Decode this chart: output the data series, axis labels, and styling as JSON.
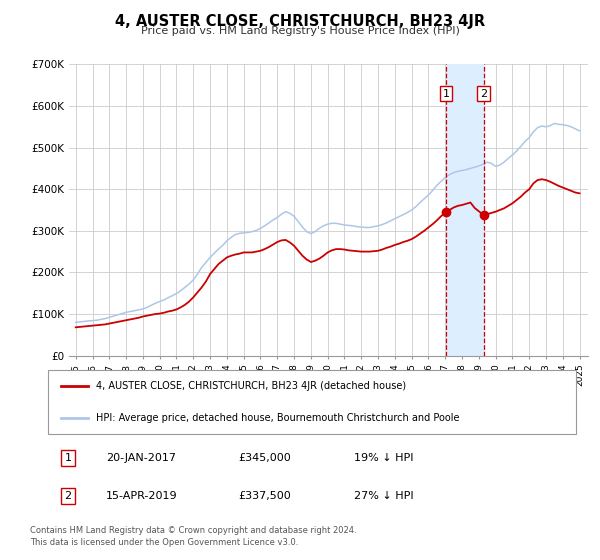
{
  "title": "4, AUSTER CLOSE, CHRISTCHURCH, BH23 4JR",
  "subtitle": "Price paid vs. HM Land Registry's House Price Index (HPI)",
  "legend_line1": "4, AUSTER CLOSE, CHRISTCHURCH, BH23 4JR (detached house)",
  "legend_line2": "HPI: Average price, detached house, Bournemouth Christchurch and Poole",
  "footnote1": "Contains HM Land Registry data © Crown copyright and database right 2024.",
  "footnote2": "This data is licensed under the Open Government Licence v3.0.",
  "transaction1_date": "20-JAN-2017",
  "transaction1_price": "£345,000",
  "transaction1_hpi": "19% ↓ HPI",
  "transaction2_date": "15-APR-2019",
  "transaction2_price": "£337,500",
  "transaction2_hpi": "27% ↓ HPI",
  "vline1_year": 2017.05,
  "vline2_year": 2019.29,
  "marker1_x": 2017.05,
  "marker1_y": 345000,
  "marker2_x": 2019.29,
  "marker2_y": 337500,
  "hpi_color": "#aec6e8",
  "price_color": "#cc0000",
  "vline_color": "#cc0000",
  "shade_color": "#ddeeff",
  "background_color": "#ffffff",
  "grid_color": "#cccccc",
  "ylim": [
    0,
    700000
  ],
  "yticks": [
    0,
    100000,
    200000,
    300000,
    400000,
    500000,
    600000,
    700000
  ],
  "ytick_labels": [
    "£0",
    "£100K",
    "£200K",
    "£300K",
    "£400K",
    "£500K",
    "£600K",
    "£700K"
  ],
  "xlim_start": 1994.6,
  "xlim_end": 2025.5,
  "hpi_data": [
    [
      1995.0,
      80000
    ],
    [
      1995.25,
      81000
    ],
    [
      1995.5,
      82000
    ],
    [
      1995.75,
      83500
    ],
    [
      1996.0,
      84000
    ],
    [
      1996.25,
      85000
    ],
    [
      1996.5,
      87000
    ],
    [
      1996.75,
      89000
    ],
    [
      1997.0,
      92000
    ],
    [
      1997.25,
      95000
    ],
    [
      1997.5,
      98000
    ],
    [
      1997.75,
      101000
    ],
    [
      1998.0,
      104000
    ],
    [
      1998.25,
      106000
    ],
    [
      1998.5,
      108000
    ],
    [
      1998.75,
      110000
    ],
    [
      1999.0,
      112000
    ],
    [
      1999.25,
      116000
    ],
    [
      1999.5,
      121000
    ],
    [
      1999.75,
      126000
    ],
    [
      2000.0,
      130000
    ],
    [
      2000.25,
      134000
    ],
    [
      2000.5,
      139000
    ],
    [
      2000.75,
      144000
    ],
    [
      2001.0,
      149000
    ],
    [
      2001.25,
      156000
    ],
    [
      2001.5,
      164000
    ],
    [
      2001.75,
      172000
    ],
    [
      2002.0,
      182000
    ],
    [
      2002.25,
      196000
    ],
    [
      2002.5,
      212000
    ],
    [
      2002.75,
      224000
    ],
    [
      2003.0,
      236000
    ],
    [
      2003.25,
      246000
    ],
    [
      2003.5,
      256000
    ],
    [
      2003.75,
      265000
    ],
    [
      2004.0,
      276000
    ],
    [
      2004.25,
      284000
    ],
    [
      2004.5,
      291000
    ],
    [
      2004.75,
      294000
    ],
    [
      2005.0,
      295000
    ],
    [
      2005.25,
      296000
    ],
    [
      2005.5,
      298000
    ],
    [
      2005.75,
      301000
    ],
    [
      2006.0,
      306000
    ],
    [
      2006.25,
      312000
    ],
    [
      2006.5,
      319000
    ],
    [
      2006.75,
      326000
    ],
    [
      2007.0,
      332000
    ],
    [
      2007.25,
      340000
    ],
    [
      2007.5,
      346000
    ],
    [
      2007.75,
      342000
    ],
    [
      2008.0,
      335000
    ],
    [
      2008.25,
      322000
    ],
    [
      2008.5,
      309000
    ],
    [
      2008.75,
      298000
    ],
    [
      2009.0,
      293000
    ],
    [
      2009.25,
      298000
    ],
    [
      2009.5,
      306000
    ],
    [
      2009.75,
      312000
    ],
    [
      2010.0,
      316000
    ],
    [
      2010.25,
      318000
    ],
    [
      2010.5,
      318000
    ],
    [
      2010.75,
      316000
    ],
    [
      2011.0,
      314000
    ],
    [
      2011.25,
      313000
    ],
    [
      2011.5,
      312000
    ],
    [
      2011.75,
      310000
    ],
    [
      2012.0,
      309000
    ],
    [
      2012.25,
      308000
    ],
    [
      2012.5,
      308000
    ],
    [
      2012.75,
      310000
    ],
    [
      2013.0,
      312000
    ],
    [
      2013.25,
      315000
    ],
    [
      2013.5,
      319000
    ],
    [
      2013.75,
      324000
    ],
    [
      2014.0,
      329000
    ],
    [
      2014.25,
      334000
    ],
    [
      2014.5,
      339000
    ],
    [
      2014.75,
      344000
    ],
    [
      2015.0,
      350000
    ],
    [
      2015.25,
      358000
    ],
    [
      2015.5,
      368000
    ],
    [
      2015.75,
      377000
    ],
    [
      2016.0,
      386000
    ],
    [
      2016.25,
      397000
    ],
    [
      2016.5,
      409000
    ],
    [
      2016.75,
      419000
    ],
    [
      2017.0,
      428000
    ],
    [
      2017.25,
      435000
    ],
    [
      2017.5,
      440000
    ],
    [
      2017.75,
      443000
    ],
    [
      2018.0,
      445000
    ],
    [
      2018.25,
      447000
    ],
    [
      2018.5,
      450000
    ],
    [
      2018.75,
      453000
    ],
    [
      2019.0,
      456000
    ],
    [
      2019.25,
      460000
    ],
    [
      2019.5,
      465000
    ],
    [
      2019.75,
      462000
    ],
    [
      2020.0,
      455000
    ],
    [
      2020.25,
      458000
    ],
    [
      2020.5,
      465000
    ],
    [
      2020.75,
      474000
    ],
    [
      2021.0,
      482000
    ],
    [
      2021.25,
      492000
    ],
    [
      2021.5,
      503000
    ],
    [
      2021.75,
      515000
    ],
    [
      2022.0,
      524000
    ],
    [
      2022.25,
      538000
    ],
    [
      2022.5,
      548000
    ],
    [
      2022.75,
      552000
    ],
    [
      2023.0,
      550000
    ],
    [
      2023.25,
      553000
    ],
    [
      2023.5,
      558000
    ],
    [
      2023.75,
      556000
    ],
    [
      2024.0,
      555000
    ],
    [
      2024.25,
      553000
    ],
    [
      2024.5,
      550000
    ],
    [
      2024.75,
      545000
    ],
    [
      2025.0,
      540000
    ]
  ],
  "price_data": [
    [
      1995.0,
      68000
    ],
    [
      1995.25,
      69000
    ],
    [
      1995.5,
      70000
    ],
    [
      1995.75,
      71000
    ],
    [
      1996.0,
      72000
    ],
    [
      1996.25,
      73000
    ],
    [
      1996.5,
      74000
    ],
    [
      1996.75,
      75000
    ],
    [
      1997.0,
      77000
    ],
    [
      1997.25,
      79000
    ],
    [
      1997.5,
      81000
    ],
    [
      1997.75,
      83000
    ],
    [
      1998.0,
      85000
    ],
    [
      1998.25,
      87000
    ],
    [
      1998.5,
      89000
    ],
    [
      1998.75,
      91000
    ],
    [
      1999.0,
      94000
    ],
    [
      1999.25,
      96000
    ],
    [
      1999.5,
      98000
    ],
    [
      1999.75,
      100000
    ],
    [
      2000.0,
      101000
    ],
    [
      2000.25,
      103000
    ],
    [
      2000.5,
      106000
    ],
    [
      2000.75,
      108000
    ],
    [
      2001.0,
      111000
    ],
    [
      2001.25,
      116000
    ],
    [
      2001.5,
      122000
    ],
    [
      2001.75,
      130000
    ],
    [
      2002.0,
      140000
    ],
    [
      2002.25,
      152000
    ],
    [
      2002.5,
      164000
    ],
    [
      2002.75,
      178000
    ],
    [
      2003.0,
      196000
    ],
    [
      2003.25,
      208000
    ],
    [
      2003.5,
      220000
    ],
    [
      2003.75,
      228000
    ],
    [
      2004.0,
      236000
    ],
    [
      2004.25,
      240000
    ],
    [
      2004.5,
      243000
    ],
    [
      2004.75,
      245000
    ],
    [
      2005.0,
      248000
    ],
    [
      2005.25,
      248000
    ],
    [
      2005.5,
      248000
    ],
    [
      2005.75,
      250000
    ],
    [
      2006.0,
      252000
    ],
    [
      2006.25,
      256000
    ],
    [
      2006.5,
      261000
    ],
    [
      2006.75,
      267000
    ],
    [
      2007.0,
      273000
    ],
    [
      2007.25,
      277000
    ],
    [
      2007.5,
      278000
    ],
    [
      2007.75,
      272000
    ],
    [
      2008.0,
      264000
    ],
    [
      2008.25,
      252000
    ],
    [
      2008.5,
      240000
    ],
    [
      2008.75,
      231000
    ],
    [
      2009.0,
      225000
    ],
    [
      2009.25,
      228000
    ],
    [
      2009.5,
      233000
    ],
    [
      2009.75,
      240000
    ],
    [
      2010.0,
      248000
    ],
    [
      2010.25,
      253000
    ],
    [
      2010.5,
      256000
    ],
    [
      2010.75,
      256000
    ],
    [
      2011.0,
      255000
    ],
    [
      2011.25,
      253000
    ],
    [
      2011.5,
      252000
    ],
    [
      2011.75,
      251000
    ],
    [
      2012.0,
      250000
    ],
    [
      2012.25,
      250000
    ],
    [
      2012.5,
      250000
    ],
    [
      2012.75,
      251000
    ],
    [
      2013.0,
      252000
    ],
    [
      2013.25,
      255000
    ],
    [
      2013.5,
      259000
    ],
    [
      2013.75,
      262000
    ],
    [
      2014.0,
      266000
    ],
    [
      2014.25,
      269000
    ],
    [
      2014.5,
      273000
    ],
    [
      2014.75,
      276000
    ],
    [
      2015.0,
      280000
    ],
    [
      2015.25,
      286000
    ],
    [
      2015.5,
      293000
    ],
    [
      2015.75,
      300000
    ],
    [
      2016.0,
      308000
    ],
    [
      2016.25,
      316000
    ],
    [
      2016.5,
      325000
    ],
    [
      2016.75,
      335000
    ],
    [
      2017.05,
      345000
    ],
    [
      2017.5,
      356000
    ],
    [
      2017.75,
      360000
    ],
    [
      2018.0,
      362000
    ],
    [
      2018.25,
      365000
    ],
    [
      2018.5,
      368000
    ],
    [
      2018.75,
      355000
    ],
    [
      2019.29,
      337500
    ],
    [
      2019.5,
      340000
    ],
    [
      2019.75,
      343000
    ],
    [
      2020.0,
      346000
    ],
    [
      2020.25,
      350000
    ],
    [
      2020.5,
      354000
    ],
    [
      2020.75,
      360000
    ],
    [
      2021.0,
      366000
    ],
    [
      2021.25,
      374000
    ],
    [
      2021.5,
      382000
    ],
    [
      2021.75,
      392000
    ],
    [
      2022.0,
      400000
    ],
    [
      2022.25,
      414000
    ],
    [
      2022.5,
      422000
    ],
    [
      2022.75,
      424000
    ],
    [
      2023.0,
      422000
    ],
    [
      2023.25,
      418000
    ],
    [
      2023.5,
      413000
    ],
    [
      2023.75,
      408000
    ],
    [
      2024.0,
      404000
    ],
    [
      2024.25,
      400000
    ],
    [
      2024.5,
      396000
    ],
    [
      2024.75,
      392000
    ],
    [
      2025.0,
      390000
    ]
  ]
}
